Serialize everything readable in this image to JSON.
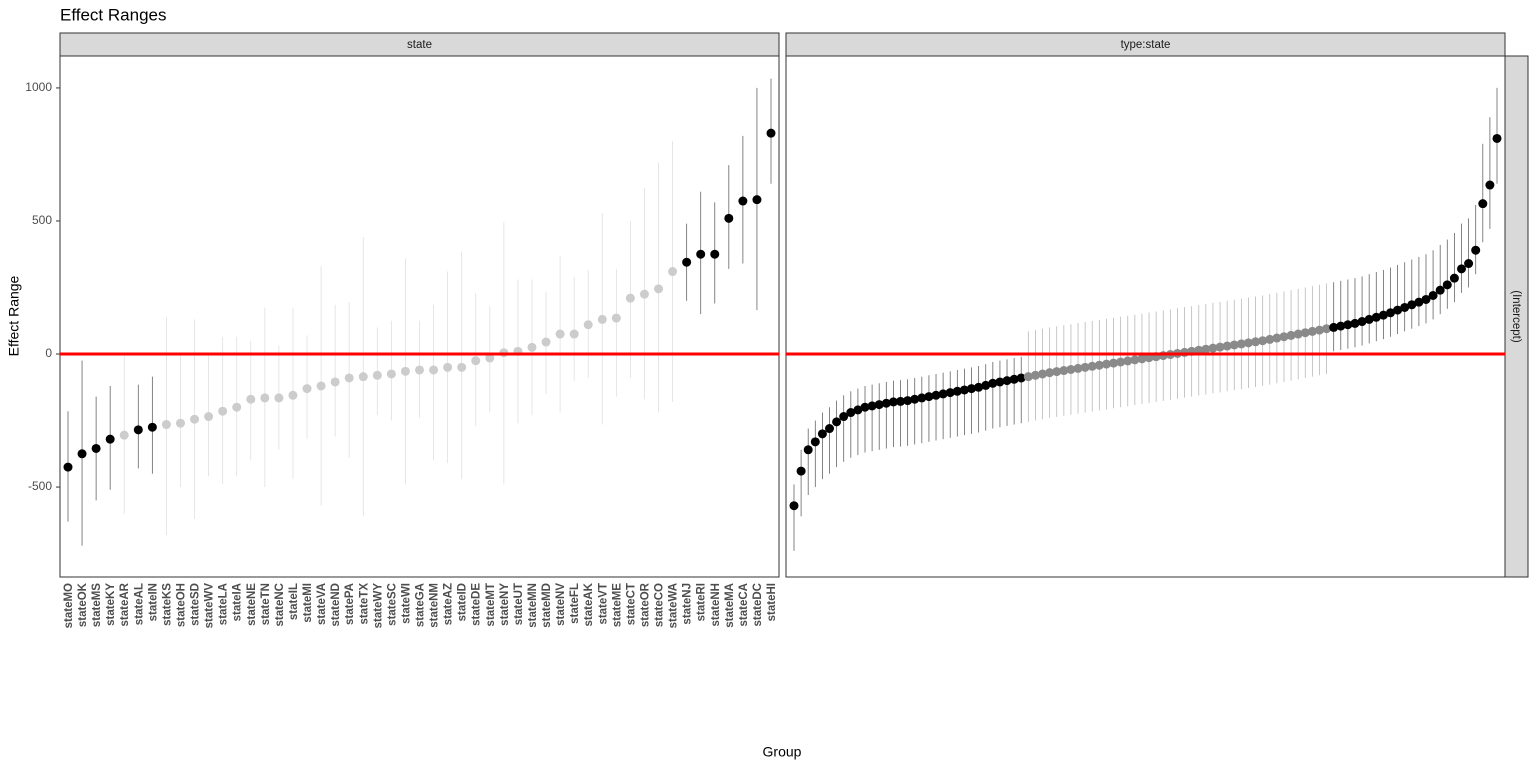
{
  "chart_data": [
    {
      "type": "pointrange",
      "title": "Effect Ranges",
      "facet": "state",
      "y_label": "Effect Range",
      "x_label": "Group",
      "ylim": [
        -838,
        1120
      ],
      "yticks": [
        -500,
        0,
        500,
        1000
      ],
      "hline": 0,
      "hline_color": "#ff0000",
      "color": "#000000",
      "ns_color": "#cccccc",
      "categories": [
        "stateMO",
        "stateOK",
        "stateMS",
        "stateKY",
        "stateAR",
        "stateAL",
        "stateIN",
        "stateKS",
        "stateOH",
        "stateSD",
        "stateWV",
        "stateLA",
        "stateIA",
        "stateNE",
        "stateTN",
        "stateNC",
        "stateIL",
        "stateMI",
        "stateVA",
        "stateND",
        "statePA",
        "stateTX",
        "stateWY",
        "stateSC",
        "stateWI",
        "stateGA",
        "stateNM",
        "stateAZ",
        "stateID",
        "stateDE",
        "stateMT",
        "stateNY",
        "stateUT",
        "stateMN",
        "stateMD",
        "stateNV",
        "stateFL",
        "stateAK",
        "stateVT",
        "stateME",
        "stateCT",
        "stateOR",
        "stateCO",
        "stateWA",
        "stateNJ",
        "stateRI",
        "stateNH",
        "stateMA",
        "stateCA",
        "stateDC",
        "stateHI"
      ],
      "values": [
        -425,
        -375,
        -355,
        -320,
        -305,
        -285,
        -275,
        -265,
        -260,
        -245,
        -235,
        -215,
        -200,
        -170,
        -165,
        -165,
        -155,
        -130,
        -120,
        -105,
        -90,
        -85,
        -80,
        -75,
        -65,
        -60,
        -60,
        -50,
        -50,
        -25,
        -15,
        5,
        10,
        25,
        45,
        75,
        75,
        110,
        130,
        135,
        210,
        225,
        245,
        310,
        345,
        375,
        375,
        510,
        575,
        580,
        830
      ],
      "lower": [
        -630,
        -720,
        -550,
        -510,
        -600,
        -430,
        -450,
        -680,
        -500,
        -620,
        -460,
        -490,
        -460,
        -400,
        -500,
        -360,
        -470,
        -320,
        -570,
        -310,
        -390,
        -610,
        -230,
        -250,
        -490,
        -240,
        -400,
        -410,
        -470,
        -270,
        -220,
        -490,
        -260,
        -230,
        -150,
        -220,
        -100,
        -90,
        -265,
        -160,
        -90,
        -170,
        -220,
        -180,
        200,
        150,
        190,
        320,
        340,
        165,
        640
      ],
      "upper": [
        -215,
        -25,
        -160,
        -120,
        0,
        -115,
        -85,
        140,
        0,
        130,
        0,
        65,
        65,
        50,
        175,
        30,
        175,
        70,
        330,
        185,
        195,
        440,
        100,
        125,
        360,
        125,
        185,
        310,
        385,
        230,
        180,
        495,
        280,
        280,
        235,
        370,
        290,
        315,
        530,
        320,
        500,
        625,
        720,
        800,
        490,
        610,
        570,
        710,
        820,
        1000,
        1035
      ]
    },
    {
      "type": "pointrange",
      "facet": "type:state",
      "row_strip": "(Intercept)",
      "hline": 0,
      "hline_color": "#ff0000",
      "color": "#000000",
      "ns_color": "#8a8a8a",
      "values": [
        -570,
        -440,
        -360,
        -330,
        -300,
        -280,
        -255,
        -235,
        -220,
        -210,
        -200,
        -195,
        -190,
        -185,
        -180,
        -178,
        -175,
        -170,
        -165,
        -160,
        -155,
        -150,
        -145,
        -140,
        -135,
        -130,
        -125,
        -118,
        -110,
        -105,
        -100,
        -95,
        -90,
        -85,
        -80,
        -75,
        -70,
        -66,
        -62,
        -58,
        -54,
        -50,
        -46,
        -42,
        -38,
        -34,
        -30,
        -26,
        -22,
        -18,
        -14,
        -10,
        -6,
        -2,
        2,
        6,
        10,
        14,
        18,
        22,
        26,
        30,
        34,
        38,
        42,
        46,
        50,
        55,
        60,
        65,
        70,
        75,
        80,
        85,
        90,
        95,
        100,
        105,
        110,
        115,
        122,
        130,
        138,
        146,
        155,
        165,
        175,
        185,
        195,
        205,
        220,
        240,
        260,
        285,
        320,
        340,
        390,
        565,
        635,
        810
      ],
      "lower": [
        -740,
        -610,
        -530,
        -500,
        -470,
        -450,
        -425,
        -405,
        -390,
        -380,
        -370,
        -365,
        -360,
        -355,
        -350,
        -348,
        -345,
        -340,
        -335,
        -330,
        -325,
        -320,
        -315,
        -310,
        -305,
        -300,
        -295,
        -288,
        -280,
        -275,
        -270,
        -265,
        -260,
        -255,
        -250,
        -245,
        -240,
        -236,
        -232,
        -228,
        -224,
        -220,
        -216,
        -212,
        -208,
        -204,
        -200,
        -196,
        -192,
        -188,
        -184,
        -180,
        -176,
        -172,
        -168,
        -164,
        -160,
        -156,
        -152,
        -148,
        -144,
        -140,
        -136,
        -132,
        -128,
        -124,
        -120,
        -115,
        -110,
        -105,
        -100,
        -95,
        -90,
        -85,
        -80,
        -75,
        10,
        15,
        20,
        25,
        32,
        40,
        48,
        56,
        65,
        75,
        85,
        95,
        105,
        115,
        130,
        150,
        170,
        195,
        230,
        250,
        300,
        420,
        470,
        640
      ],
      "upper": [
        -490,
        -360,
        -280,
        -250,
        -220,
        -200,
        -175,
        -155,
        -140,
        -130,
        -120,
        -115,
        -110,
        -105,
        -100,
        -98,
        -95,
        -90,
        -85,
        -80,
        -75,
        -70,
        -65,
        -60,
        -55,
        -50,
        -45,
        -38,
        -30,
        -25,
        -20,
        -15,
        -10,
        85,
        90,
        95,
        100,
        104,
        108,
        112,
        116,
        120,
        124,
        128,
        132,
        136,
        140,
        144,
        148,
        152,
        156,
        160,
        164,
        168,
        172,
        176,
        180,
        184,
        188,
        192,
        196,
        200,
        204,
        208,
        212,
        216,
        220,
        225,
        230,
        235,
        240,
        245,
        250,
        255,
        260,
        265,
        270,
        275,
        280,
        285,
        292,
        300,
        308,
        316,
        325,
        335,
        345,
        355,
        365,
        375,
        390,
        410,
        430,
        455,
        490,
        510,
        560,
        790,
        890,
        1000
      ]
    }
  ]
}
